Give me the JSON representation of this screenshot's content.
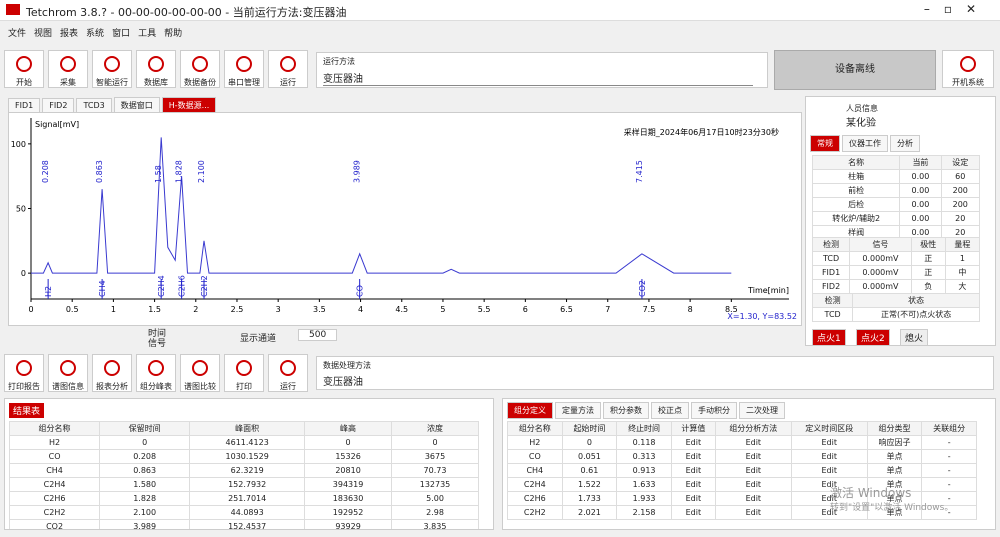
{
  "window": {
    "title": "Tetchrom 3.8.? - 00-00-00-00-00-00 - 当前运行方法:变压器油"
  },
  "menu": [
    "文件",
    "视图",
    "报表",
    "系统",
    "窗口",
    "工具",
    "帮助"
  ],
  "toolbar": [
    "开始",
    "采集",
    "智能运行",
    "数据库",
    "数据备份",
    "串口管理",
    "运行"
  ],
  "method": {
    "label": "运行方法",
    "value": "变压器油"
  },
  "status_button": "设备离线",
  "power_button": "开机系统",
  "tabs": [
    "FID1",
    "FID2",
    "TCD3",
    "数据窗口",
    "H-数据源..."
  ],
  "chart_data": {
    "type": "line",
    "y_label": "Signal[mV]",
    "x_label": "Time[min]",
    "annotation": "采样日期_2024年06月17日10时23分30秒",
    "cursor": "X=1.30, Y=83.52",
    "xlim": [
      0,
      9.2
    ],
    "ylim": [
      -20,
      120
    ],
    "xticks": [
      0,
      0.5,
      1,
      1.5,
      2,
      2.5,
      3,
      3.5,
      4,
      4.5,
      5,
      5.5,
      6,
      6.5,
      7,
      7.5,
      8,
      8.5
    ],
    "yticks": [
      0,
      50,
      100
    ],
    "x": [
      0,
      0.15,
      0.208,
      0.26,
      0.8,
      0.863,
      0.93,
      1.5,
      1.58,
      1.66,
      1.75,
      1.828,
      1.9,
      2.05,
      2.1,
      2.16,
      3.9,
      3.989,
      4.08,
      5.0,
      5.1,
      5.2,
      7.1,
      7.415,
      7.8,
      8.5
    ],
    "values": [
      0,
      0,
      8,
      0,
      0,
      65,
      0,
      0,
      105,
      20,
      10,
      75,
      0,
      0,
      25,
      0,
      0,
      15,
      0,
      0,
      3,
      0,
      0,
      15,
      0,
      0
    ],
    "color": "#3a3ad0",
    "peaks": [
      {
        "time": 0.208,
        "name": "H2"
      },
      {
        "time": 0.863,
        "name": "CH4"
      },
      {
        "time": 1.58,
        "name": "C2H4"
      },
      {
        "time": 1.828,
        "name": "C2H6"
      },
      {
        "time": {
          "value": 2.1,
          "label": "2.100"
        },
        "name": "C2H2"
      },
      {
        "time": 3.989,
        "name": "CO"
      },
      {
        "time": 7.415,
        "name": "CO2"
      }
    ]
  },
  "plot_tools": {
    "time_label": "时间",
    "signal_label": "信号",
    "channel_label": "显示通道",
    "channel_value": "500"
  },
  "operator": {
    "label": "人员信息",
    "value": "某化验"
  },
  "right_tabs": [
    "常规",
    "仪器工作",
    "分析"
  ],
  "temps": {
    "header": [
      "名称",
      "当前",
      "设定"
    ],
    "rows": [
      [
        "柱箱",
        "0.00",
        "60"
      ],
      [
        "前检",
        "0.00",
        "200"
      ],
      [
        "后检",
        "0.00",
        "200"
      ],
      [
        "转化炉/辅助2",
        "0.00",
        "20"
      ],
      [
        "样阀",
        "0.00",
        "20"
      ]
    ]
  },
  "detectors": {
    "header": [
      "检测",
      "信号",
      "极性",
      "量程"
    ],
    "rows": [
      [
        "TCD",
        "0.000mV",
        "正",
        "1"
      ],
      [
        "FID1",
        "0.000mV",
        "正",
        "中"
      ],
      [
        "FID2",
        "0.000mV",
        "负",
        "大"
      ]
    ]
  },
  "valves": {
    "header": [
      "检测",
      "状态"
    ],
    "rows": [
      [
        "TCD",
        "正常(不可)点火状态"
      ]
    ]
  },
  "ignite": [
    "点火1",
    "点火2",
    "熄火"
  ],
  "toolbar2": [
    "打印报告",
    "谱图信息",
    "报表分析",
    "组分峰表",
    "谱图比较",
    "打印",
    "运行"
  ],
  "method2": {
    "label": "数据处理方法",
    "value": "变压器油"
  },
  "results": {
    "title": "结果表",
    "header": [
      "组分名称",
      "保留时间",
      "峰面积",
      "峰高",
      "浓度"
    ],
    "rows": [
      [
        "H2",
        "0",
        "4611.4123",
        "0",
        "0"
      ],
      [
        "CO",
        "0.208",
        "1030.1529",
        "15326",
        "3675"
      ],
      [
        "CH4",
        "0.863",
        "62.3219",
        "20810",
        "70.73"
      ],
      [
        "C2H4",
        "1.580",
        "152.7932",
        "394319",
        "132735"
      ],
      [
        "C2H6",
        "1.828",
        "251.7014",
        "183630",
        "5.00"
      ],
      [
        "C2H2",
        "2.100",
        "44.0893",
        "192952",
        "2.98"
      ],
      [
        "CO2",
        "3.989",
        "152.4537",
        "93929",
        "3.835"
      ]
    ]
  },
  "components": {
    "tabs": [
      "组分定义",
      "定量方法",
      "积分参数",
      "校正点",
      "手动积分",
      "二次处理"
    ],
    "header": [
      "组分名称",
      "起始时间",
      "终止时间",
      "计算值",
      "组分分析方法",
      "定义时间区段",
      "组分类型",
      "关联组分"
    ],
    "rows": [
      [
        "H2",
        "0",
        "0.118",
        "Edit",
        "Edit",
        "Edit",
        "响应因子",
        "-"
      ],
      [
        "CO",
        "0.051",
        "0.313",
        "Edit",
        "Edit",
        "Edit",
        "单点",
        "-"
      ],
      [
        "CH4",
        "0.61",
        "0.913",
        "Edit",
        "Edit",
        "Edit",
        "单点",
        "-"
      ],
      [
        "C2H4",
        "1.522",
        "1.633",
        "Edit",
        "Edit",
        "Edit",
        "单点",
        "-"
      ],
      [
        "C2H6",
        "1.733",
        "1.933",
        "Edit",
        "Edit",
        "Edit",
        "单点",
        "-"
      ],
      [
        "C2H2",
        "2.021",
        "2.158",
        "Edit",
        "Edit",
        "Edit",
        "单点",
        "-"
      ]
    ]
  },
  "watermark": {
    "title": "激活 Windows",
    "text": "转到\"设置\"以激活 Windows。"
  }
}
